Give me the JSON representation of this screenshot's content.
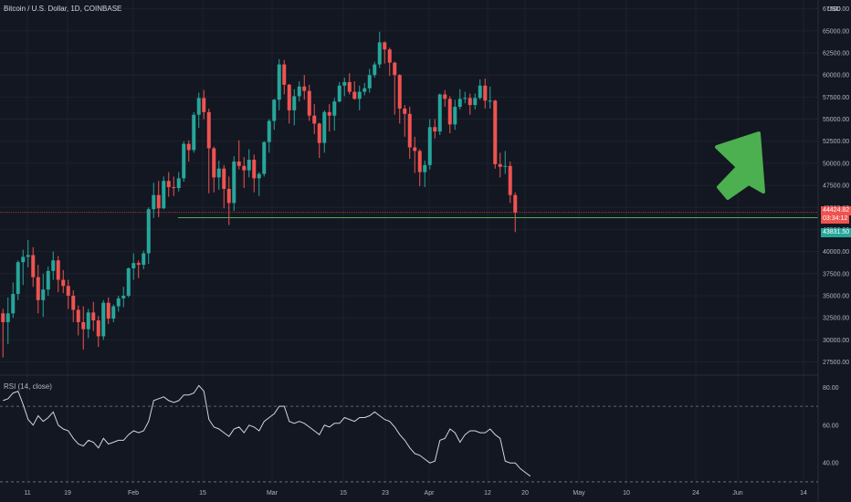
{
  "chart_title": "Bitcoin / U.S. Dollar, 1D, COINBASE",
  "currency_label": "USD",
  "colors": {
    "up": "#26a69a",
    "down": "#ef5350",
    "support_line": "#4caf50",
    "arrow": "#4caf50",
    "rsi_line": "#d1d4dc"
  },
  "price_tags": {
    "last_price": "44424.82",
    "countdown": "03:34:12",
    "support_price": "43831.50"
  },
  "arrow": {
    "icon": "up-right-arrow-icon",
    "color": "#4caf50"
  },
  "chart_data": [
    {
      "type": "candlestick",
      "title": "Bitcoin / U.S. Dollar, 1D, COINBASE",
      "ylabel": "USD",
      "ylim": [
        26000,
        68500
      ],
      "y_ticks": [
        "67500.00",
        "65000.00",
        "62500.00",
        "60000.00",
        "57500.00",
        "55000.00",
        "52500.00",
        "50000.00",
        "47500.00",
        "45000.00",
        "42500.00",
        "40000.00",
        "37500.00",
        "35000.00",
        "32500.00",
        "30000.00",
        "27500.00"
      ],
      "x_ticks": [
        "11",
        "19",
        "Feb",
        "15",
        "Mar",
        "15",
        "23",
        "Apr",
        "12",
        "20",
        "May",
        "10",
        "24",
        "Jun",
        "14"
      ],
      "start_date": "2021-01-04",
      "support_level": 43831.5,
      "ohlc": [
        [
          33000,
          33500,
          28000,
          32000
        ],
        [
          32000,
          34800,
          29500,
          33000
        ],
        [
          33000,
          36500,
          32500,
          35200
        ],
        [
          35200,
          39000,
          34500,
          38800
        ],
        [
          38800,
          40200,
          36200,
          39400
        ],
        [
          39400,
          41300,
          38200,
          39600
        ],
        [
          39600,
          40500,
          36000,
          37100
        ],
        [
          37100,
          38500,
          33000,
          34500
        ],
        [
          34500,
          37500,
          32600,
          35700
        ],
        [
          35700,
          38300,
          35000,
          37800
        ],
        [
          37800,
          40000,
          36800,
          39000
        ],
        [
          39000,
          39500,
          35400,
          36800
        ],
        [
          36800,
          37900,
          35300,
          36100
        ],
        [
          36100,
          36800,
          33500,
          35000
        ],
        [
          35000,
          35600,
          32000,
          33400
        ],
        [
          33400,
          33900,
          30500,
          32000
        ],
        [
          32000,
          33800,
          28900,
          31200
        ],
        [
          31200,
          33500,
          30200,
          33100
        ],
        [
          33100,
          34300,
          31000,
          32200
        ],
        [
          32200,
          32700,
          29200,
          30400
        ],
        [
          30400,
          34500,
          30000,
          34200
        ],
        [
          34200,
          34800,
          31800,
          32400
        ],
        [
          32400,
          34000,
          32000,
          33800
        ],
        [
          33800,
          35000,
          33200,
          34700
        ],
        [
          34700,
          36000,
          33700,
          35000
        ],
        [
          35000,
          38200,
          34800,
          38100
        ],
        [
          38100,
          39800,
          36800,
          38700
        ],
        [
          38700,
          39000,
          37000,
          38500
        ],
        [
          38500,
          40100,
          38000,
          39800
        ],
        [
          39800,
          45000,
          38600,
          44800
        ],
        [
          44800,
          47800,
          43800,
          46400
        ],
        [
          46400,
          48000,
          43900,
          44900
        ],
        [
          44900,
          48500,
          44800,
          48000
        ],
        [
          48000,
          49000,
          46200,
          47300
        ],
        [
          47300,
          48500,
          46300,
          47200
        ],
        [
          47200,
          49000,
          46800,
          48300
        ],
        [
          48300,
          52500,
          47900,
          52200
        ],
        [
          52200,
          52600,
          50200,
          51500
        ],
        [
          51500,
          55800,
          51200,
          55500
        ],
        [
          55500,
          58000,
          54000,
          57400
        ],
        [
          57400,
          58300,
          55000,
          55800
        ],
        [
          55800,
          56200,
          46600,
          51700
        ],
        [
          51700,
          51900,
          46700,
          48400
        ],
        [
          48400,
          50300,
          47000,
          49400
        ],
        [
          49400,
          49800,
          44900,
          47100
        ],
        [
          47100,
          48500,
          43000,
          45500
        ],
        [
          45500,
          50800,
          44600,
          50200
        ],
        [
          50200,
          52600,
          49300,
          49700
        ],
        [
          49700,
          50700,
          47200,
          49200
        ],
        [
          49200,
          51600,
          48400,
          50400
        ],
        [
          50400,
          51000,
          46700,
          48300
        ],
        [
          48300,
          49000,
          46300,
          48800
        ],
        [
          48800,
          52500,
          48500,
          52400
        ],
        [
          52400,
          55000,
          51200,
          54800
        ],
        [
          54800,
          57300,
          53800,
          57200
        ],
        [
          57200,
          61800,
          56000,
          61200
        ],
        [
          61200,
          61700,
          57800,
          58900
        ],
        [
          58900,
          59000,
          54500,
          56000
        ],
        [
          56000,
          58400,
          54300,
          57600
        ],
        [
          57600,
          59300,
          57000,
          58700
        ],
        [
          58700,
          60000,
          57200,
          58200
        ],
        [
          58200,
          58900,
          54800,
          55400
        ],
        [
          55400,
          56700,
          53300,
          54500
        ],
        [
          54500,
          54600,
          50600,
          52300
        ],
        [
          52300,
          56000,
          51200,
          55800
        ],
        [
          55800,
          56700,
          53600,
          55400
        ],
        [
          55400,
          57400,
          53700,
          57000
        ],
        [
          57000,
          59200,
          56900,
          58800
        ],
        [
          58800,
          59700,
          57600,
          59200
        ],
        [
          59200,
          60200,
          57800,
          58100
        ],
        [
          58100,
          59300,
          57200,
          57300
        ],
        [
          57300,
          58800,
          56000,
          58100
        ],
        [
          58100,
          59100,
          57700,
          58500
        ],
        [
          58500,
          60700,
          58000,
          60000
        ],
        [
          60000,
          61500,
          59700,
          61200
        ],
        [
          61200,
          64900,
          60800,
          63700
        ],
        [
          63700,
          63800,
          61300,
          62900
        ],
        [
          62900,
          63100,
          59900,
          61400
        ],
        [
          61400,
          61500,
          55500,
          60000
        ],
        [
          60000,
          60100,
          54500,
          56200
        ],
        [
          56200,
          56600,
          53000,
          55600
        ],
        [
          55600,
          56400,
          50500,
          51800
        ],
        [
          51800,
          53000,
          48900,
          51400
        ],
        [
          51400,
          51600,
          47400,
          49000
        ],
        [
          49000,
          50300,
          47300,
          49800
        ],
        [
          49800,
          55000,
          49300,
          54100
        ],
        [
          54100,
          55000,
          52800,
          53600
        ],
        [
          53600,
          57900,
          53200,
          57800
        ],
        [
          57800,
          58300,
          56400,
          57300
        ],
        [
          57300,
          57600,
          53400,
          54400
        ],
        [
          54400,
          57200,
          53800,
          56400
        ],
        [
          56400,
          58400,
          56100,
          57300
        ],
        [
          57300,
          58100,
          56800,
          57400
        ],
        [
          57400,
          57900,
          55500,
          56600
        ],
        [
          56600,
          57900,
          56100,
          57400
        ],
        [
          57400,
          59500,
          57200,
          58800
        ],
        [
          58800,
          59600,
          56200,
          57100
        ],
        [
          57100,
          58700,
          56200,
          57100
        ],
        [
          57100,
          57200,
          49400,
          49900
        ],
        [
          49900,
          51200,
          48400,
          49600
        ],
        [
          49600,
          51400,
          48800,
          49700
        ],
        [
          49700,
          50200,
          45500,
          46400
        ],
        [
          46400,
          46700,
          42200,
          44424.82
        ]
      ]
    },
    {
      "type": "line",
      "title": "RSI (14, close)",
      "ylim": [
        29,
        86
      ],
      "y_ticks": [
        "80.00",
        "60.00",
        "40.00"
      ],
      "levels": [
        70,
        30
      ],
      "series": [
        {
          "name": "RSI (14, close)",
          "values": [
            73,
            74,
            77,
            78,
            71,
            63,
            60,
            65,
            62,
            64,
            67,
            60,
            58,
            57,
            53,
            50,
            49,
            52,
            51,
            48,
            53,
            50,
            51,
            52,
            52,
            55,
            57,
            56,
            57,
            62,
            73,
            74,
            75,
            73,
            72,
            73,
            76,
            76,
            77,
            81,
            78,
            63,
            59,
            58,
            56,
            54,
            58,
            59,
            56,
            60,
            59,
            57,
            62,
            64,
            66,
            70,
            70,
            62,
            61,
            62,
            61,
            59,
            57,
            55,
            60,
            59,
            61,
            61,
            64,
            63,
            62,
            64,
            64,
            65,
            67,
            65,
            63,
            62,
            59,
            55,
            52,
            48,
            45,
            44,
            42,
            40,
            41,
            52,
            53,
            58,
            56,
            51,
            55,
            57,
            57,
            56,
            56,
            58,
            55,
            53,
            41,
            40,
            40,
            37,
            35,
            33
          ]
        }
      ]
    }
  ]
}
